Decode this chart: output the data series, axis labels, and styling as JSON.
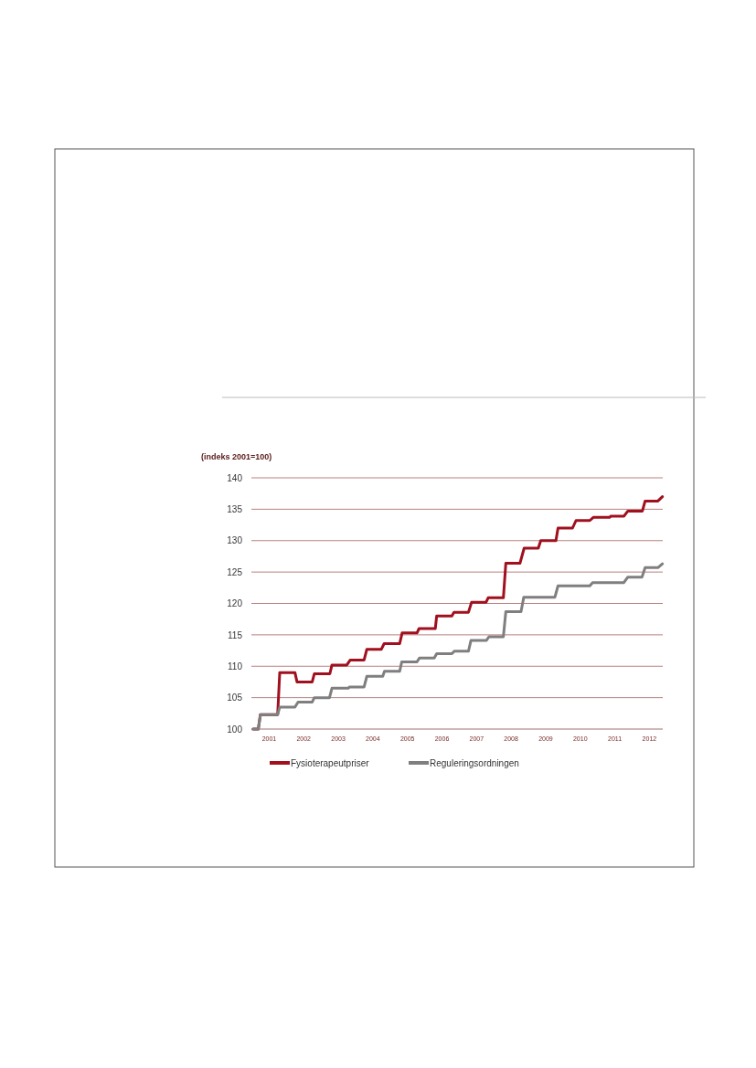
{
  "chart_data": {
    "type": "line",
    "ylabel": "(indeks 2001=100)",
    "xlim": [
      2001,
      2012.9
    ],
    "ylim": [
      100,
      140
    ],
    "xticks": [
      {
        "value": 2001.5,
        "label": "2001"
      },
      {
        "value": 2002.5,
        "label": "2002"
      },
      {
        "value": 2003.5,
        "label": "2003"
      },
      {
        "value": 2004.5,
        "label": "2004"
      },
      {
        "value": 2005.5,
        "label": "2005"
      },
      {
        "value": 2006.5,
        "label": "2006"
      },
      {
        "value": 2007.5,
        "label": "2007"
      },
      {
        "value": 2008.5,
        "label": "2008"
      },
      {
        "value": 2009.5,
        "label": "2009"
      },
      {
        "value": 2010.5,
        "label": "2010"
      },
      {
        "value": 2011.5,
        "label": "2011"
      },
      {
        "value": 2012.5,
        "label": "2012"
      }
    ],
    "yticks": [
      100,
      105,
      110,
      115,
      120,
      125,
      130,
      135,
      140
    ],
    "grid": "y",
    "legend": "bottom",
    "marker": "none",
    "line_style": "solid",
    "series": [
      {
        "name": "Fysioterapeutpriser",
        "color": "#a0101e",
        "x": [
          2001.05,
          2001.2,
          2001.26,
          2001.76,
          2001.82,
          2002.26,
          2002.32,
          2002.76,
          2002.82,
          2003.27,
          2003.33,
          2003.76,
          2003.86,
          2004.26,
          2004.34,
          2004.76,
          2004.84,
          2005.29,
          2005.36,
          2005.79,
          2005.85,
          2006.32,
          2006.36,
          2006.8,
          2006.86,
          2007.28,
          2007.37,
          2007.79,
          2007.85,
          2008.29,
          2008.36,
          2008.77,
          2008.89,
          2009.3,
          2009.37,
          2009.81,
          2009.87,
          2010.29,
          2010.39,
          2010.79,
          2010.89,
          2011.36,
          2011.4,
          2011.78,
          2011.89,
          2012.31,
          2012.39,
          2012.76,
          2012.89
        ],
        "values": [
          100,
          100,
          102.3,
          102.3,
          109,
          109,
          107.5,
          107.5,
          108.8,
          108.8,
          110.2,
          110.2,
          111,
          111,
          112.7,
          112.7,
          113.6,
          113.6,
          115.3,
          115.3,
          116,
          116,
          118,
          118,
          118.6,
          118.6,
          120.2,
          120.2,
          120.9,
          120.9,
          126.4,
          126.4,
          128.8,
          128.8,
          130,
          130,
          132,
          132,
          133.2,
          133.2,
          133.7,
          133.7,
          133.9,
          133.9,
          134.7,
          134.7,
          136.3,
          136.3,
          137
        ]
      },
      {
        "name": "Reguleringsordningen",
        "color": "#7f7f7f",
        "x": [
          2001.05,
          2001.2,
          2001.26,
          2001.76,
          2001.82,
          2002.26,
          2002.35,
          2002.76,
          2002.82,
          2003.26,
          2003.33,
          2003.8,
          2003.84,
          2004.26,
          2004.34,
          2004.8,
          2004.85,
          2005.29,
          2005.35,
          2005.79,
          2005.86,
          2006.29,
          2006.36,
          2006.8,
          2006.87,
          2007.28,
          2007.35,
          2007.8,
          2007.87,
          2008.29,
          2008.36,
          2008.8,
          2008.88,
          2009.78,
          2009.87,
          2010.79,
          2010.87,
          2011.77,
          2011.89,
          2012.3,
          2012.39,
          2012.76,
          2012.89
        ],
        "values": [
          100,
          100,
          102.3,
          102.3,
          103.5,
          103.5,
          104.3,
          104.3,
          105,
          105,
          106.5,
          106.5,
          106.7,
          106.7,
          108.4,
          108.4,
          109.2,
          109.2,
          110.7,
          110.7,
          111.3,
          111.3,
          112,
          112,
          112.4,
          112.4,
          114.1,
          114.1,
          114.7,
          114.7,
          118.7,
          118.7,
          121,
          121,
          122.8,
          122.8,
          123.3,
          123.3,
          124.2,
          124.2,
          125.7,
          125.7,
          126.3
        ]
      }
    ]
  }
}
